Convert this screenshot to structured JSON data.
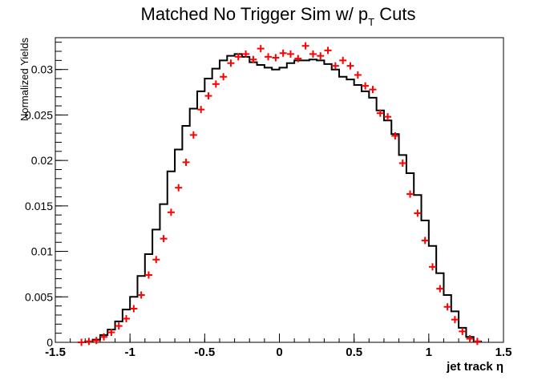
{
  "chart_data": {
    "type": "line",
    "title": {
      "main": "Matched No Trigger Sim w/ p",
      "subscript": "T",
      "suffix": " Cuts"
    },
    "xlabel": "jet track η",
    "ylabel": "Normalized Yields",
    "xlim": [
      -1.5,
      1.5
    ],
    "ylim": [
      0,
      0.0335
    ],
    "x_ticks": [
      {
        "value": -1.5,
        "label": "-1.5"
      },
      {
        "value": -1.0,
        "label": "-1"
      },
      {
        "value": -0.5,
        "label": "-0.5"
      },
      {
        "value": 0.0,
        "label": "0"
      },
      {
        "value": 0.5,
        "label": "0.5"
      },
      {
        "value": 1.0,
        "label": "1"
      },
      {
        "value": 1.5,
        "label": "1.5"
      }
    ],
    "y_ticks": [
      {
        "value": 0,
        "label": "0"
      },
      {
        "value": 0.005,
        "label": "0.005"
      },
      {
        "value": 0.01,
        "label": "0.01"
      },
      {
        "value": 0.015,
        "label": "0.015"
      },
      {
        "value": 0.02,
        "label": "0.02"
      },
      {
        "value": 0.025,
        "label": "0.025"
      },
      {
        "value": 0.03,
        "label": "0.03"
      }
    ],
    "grid": false,
    "legend": "none",
    "series": [
      {
        "kind": "step",
        "color": "#000000",
        "bin_edges": [
          -1.35,
          -1.3,
          -1.25,
          -1.2,
          -1.15,
          -1.1,
          -1.05,
          -1.0,
          -0.95,
          -0.9,
          -0.85,
          -0.8,
          -0.75,
          -0.7,
          -0.65,
          -0.6,
          -0.55,
          -0.5,
          -0.45,
          -0.4,
          -0.35,
          -0.3,
          -0.25,
          -0.2,
          -0.15,
          -0.1,
          -0.05,
          0.0,
          0.05,
          0.1,
          0.15,
          0.2,
          0.25,
          0.3,
          0.35,
          0.4,
          0.45,
          0.5,
          0.55,
          0.6,
          0.65,
          0.7,
          0.75,
          0.8,
          0.85,
          0.9,
          0.95,
          1.0,
          1.05,
          1.1,
          1.15,
          1.2,
          1.25,
          1.3,
          1.35
        ],
        "values": [
          0.0,
          0.0001,
          0.0003,
          0.0008,
          0.0014,
          0.0023,
          0.0036,
          0.005,
          0.0073,
          0.0097,
          0.0124,
          0.0152,
          0.0188,
          0.0212,
          0.0238,
          0.0257,
          0.0276,
          0.029,
          0.0301,
          0.031,
          0.0315,
          0.0317,
          0.0314,
          0.0308,
          0.0305,
          0.0302,
          0.03,
          0.0302,
          0.0307,
          0.031,
          0.031,
          0.0311,
          0.031,
          0.0306,
          0.03,
          0.0292,
          0.0289,
          0.0283,
          0.0276,
          0.0269,
          0.0255,
          0.0244,
          0.0229,
          0.0206,
          0.0186,
          0.0162,
          0.0134,
          0.0106,
          0.0076,
          0.0052,
          0.0034,
          0.0016,
          0.0006,
          0.0001
        ]
      },
      {
        "kind": "markers",
        "color": "#ff0000",
        "x": [
          -1.325,
          -1.275,
          -1.225,
          -1.175,
          -1.125,
          -1.075,
          -1.025,
          -0.975,
          -0.925,
          -0.875,
          -0.825,
          -0.775,
          -0.725,
          -0.675,
          -0.625,
          -0.575,
          -0.525,
          -0.475,
          -0.425,
          -0.375,
          -0.325,
          -0.275,
          -0.225,
          -0.175,
          -0.125,
          -0.075,
          -0.025,
          0.025,
          0.075,
          0.125,
          0.175,
          0.225,
          0.275,
          0.325,
          0.375,
          0.425,
          0.475,
          0.525,
          0.575,
          0.625,
          0.675,
          0.725,
          0.775,
          0.825,
          0.875,
          0.925,
          0.975,
          1.025,
          1.075,
          1.125,
          1.175,
          1.225,
          1.275,
          1.325
        ],
        "y": [
          0.0,
          0.0001,
          0.0002,
          0.0006,
          0.0011,
          0.0018,
          0.0026,
          0.0037,
          0.0052,
          0.0074,
          0.0091,
          0.0114,
          0.0143,
          0.017,
          0.0198,
          0.0228,
          0.0256,
          0.0271,
          0.0284,
          0.0292,
          0.0307,
          0.0314,
          0.0317,
          0.0311,
          0.0323,
          0.0314,
          0.0313,
          0.0318,
          0.0317,
          0.0312,
          0.0326,
          0.0317,
          0.0315,
          0.0321,
          0.0304,
          0.031,
          0.0304,
          0.0294,
          0.0282,
          0.0278,
          0.0252,
          0.0248,
          0.0227,
          0.0197,
          0.0163,
          0.0142,
          0.0112,
          0.0083,
          0.0059,
          0.0039,
          0.0025,
          0.0012,
          0.0004,
          0.0001
        ]
      }
    ]
  }
}
